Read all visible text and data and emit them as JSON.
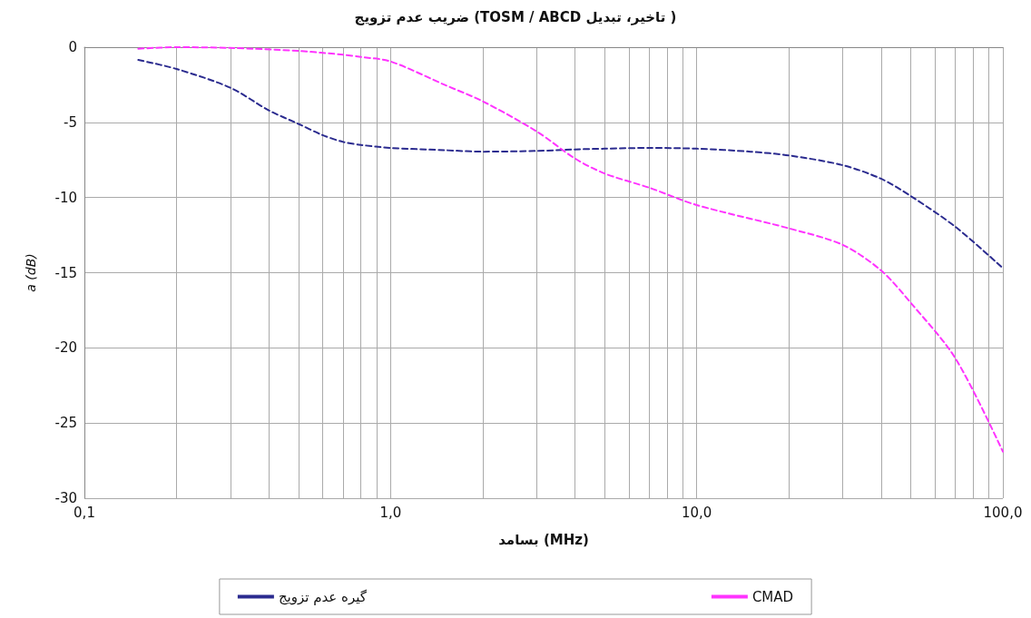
{
  "chart_data": {
    "type": "line",
    "title": "ضریب عدم تزویج (TOSM / ABCD تاخیر، تبدیل )",
    "xlabel": "بسامد (MHz)",
    "ylabel": "a (dB)",
    "log": "x",
    "xlim": [
      0.1,
      100
    ],
    "ylim": [
      -30,
      0
    ],
    "xticks": [
      {
        "value": 0.1,
        "label": "0,1"
      },
      {
        "value": 0.2,
        "label": null
      },
      {
        "value": 0.3,
        "label": null
      },
      {
        "value": 0.4,
        "label": null
      },
      {
        "value": 0.5,
        "label": null
      },
      {
        "value": 0.6,
        "label": null
      },
      {
        "value": 0.7,
        "label": null
      },
      {
        "value": 0.8,
        "label": null
      },
      {
        "value": 0.9,
        "label": null
      },
      {
        "value": 1,
        "label": "1,0"
      },
      {
        "value": 2,
        "label": null
      },
      {
        "value": 3,
        "label": null
      },
      {
        "value": 4,
        "label": null
      },
      {
        "value": 5,
        "label": null
      },
      {
        "value": 6,
        "label": null
      },
      {
        "value": 7,
        "label": null
      },
      {
        "value": 8,
        "label": null
      },
      {
        "value": 9,
        "label": null
      },
      {
        "value": 10,
        "label": "10,0"
      },
      {
        "value": 20,
        "label": null
      },
      {
        "value": 30,
        "label": null
      },
      {
        "value": 40,
        "label": null
      },
      {
        "value": 50,
        "label": null
      },
      {
        "value": 60,
        "label": null
      },
      {
        "value": 70,
        "label": null
      },
      {
        "value": 80,
        "label": null
      },
      {
        "value": 90,
        "label": null
      },
      {
        "value": 100,
        "label": "100,0"
      }
    ],
    "yticks": [
      -30,
      -25,
      -20,
      -15,
      -10,
      -5,
      0
    ],
    "grid": true,
    "legend": "bottom",
    "marker": "none",
    "line_style": "dashed",
    "series": [
      {
        "name": "گیره عدم تزویج",
        "color": "#2b2b8f",
        "x": [
          0.15,
          0.2,
          0.3,
          0.4,
          0.5,
          0.6,
          0.7,
          0.8,
          1,
          1.5,
          2,
          3,
          4,
          5,
          7,
          10,
          15,
          20,
          30,
          40,
          50,
          70,
          100
        ],
        "values": [
          -0.85,
          -1.45,
          -2.7,
          -4.2,
          -5.1,
          -5.85,
          -6.3,
          -6.5,
          -6.7,
          -6.85,
          -6.95,
          -6.9,
          -6.8,
          -6.75,
          -6.7,
          -6.75,
          -6.95,
          -7.2,
          -7.85,
          -8.75,
          -9.9,
          -11.95,
          -14.7
        ]
      },
      {
        "name": "CMAD",
        "color": "#ff33ff",
        "x": [
          0.15,
          0.2,
          0.3,
          0.5,
          0.7,
          0.8,
          1,
          1.5,
          2,
          3,
          4,
          5,
          7,
          10,
          20,
          30,
          40,
          50,
          70,
          100
        ],
        "values": [
          -0.1,
          0,
          -0.05,
          -0.25,
          -0.5,
          -0.65,
          -0.95,
          -2.5,
          -3.6,
          -5.6,
          -7.4,
          -8.4,
          -9.35,
          -10.5,
          -12.05,
          -13.15,
          -14.85,
          -17,
          -20.7,
          -26.9
        ]
      }
    ]
  }
}
